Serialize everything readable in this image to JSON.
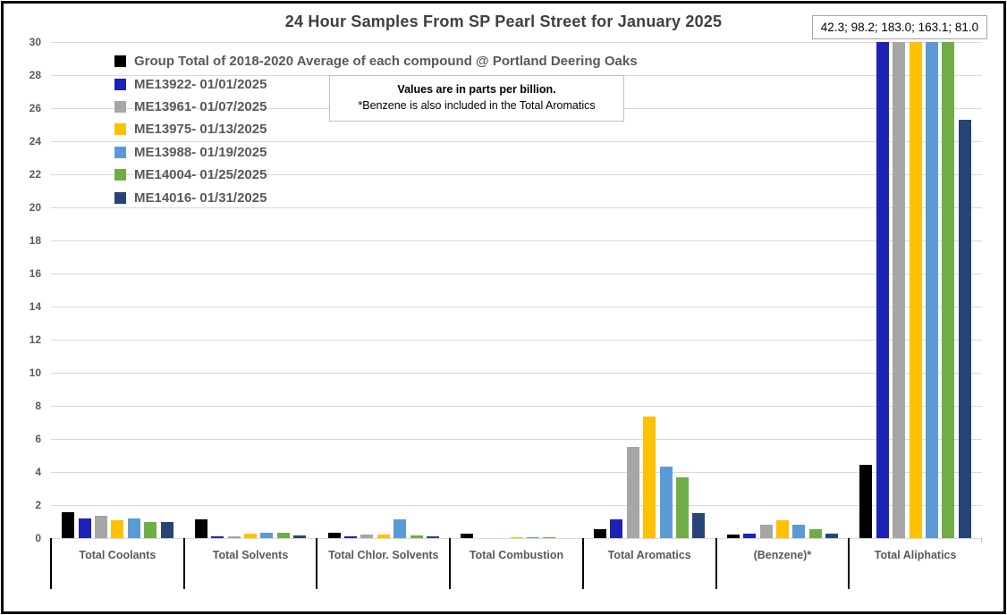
{
  "title": "24 Hour Samples From SP Pearl Street for January 2025",
  "overflow_label": "42.3; 98.2; 183.0; 163.1; 81.0",
  "info_box": {
    "line1": "Values are in parts per billion.",
    "line2": "*Benzene is also included in the Total Aromatics"
  },
  "chart_data": {
    "type": "bar",
    "title": "24 Hour Samples From SP Pearl Street for January 2025",
    "xlabel": "",
    "ylabel": "",
    "ylim": [
      0,
      30
    ],
    "ytick_step": 2,
    "grid": true,
    "legend_position": "top-left",
    "units_note": "parts per billion",
    "categories": [
      "Total Coolants",
      "Total Solvents",
      "Total Chlor. Solvents",
      "Total Combustion",
      "Total Aromatics",
      "(Benzene)*",
      "Total Aliphatics"
    ],
    "series": [
      {
        "name": "Group Total of 2018-2020 Average of each compound @ Portland Deering Oaks",
        "color": "#000000",
        "values": [
          1.55,
          1.15,
          0.35,
          0.25,
          0.55,
          0.2,
          4.45
        ]
      },
      {
        "name": "ME13922- 01/01/2025",
        "color": "#1c22b5",
        "values": [
          1.2,
          0.1,
          0.1,
          0,
          1.15,
          0.25,
          42.3
        ]
      },
      {
        "name": "ME13961- 01/07/2025",
        "color": "#a6a6a6",
        "values": [
          1.35,
          0.1,
          0.2,
          0,
          5.5,
          0.8,
          98.2
        ]
      },
      {
        "name": "ME13975- 01/13/2025",
        "color": "#ffc000",
        "values": [
          1.1,
          0.25,
          0.2,
          0.05,
          7.35,
          1.1,
          183.0
        ]
      },
      {
        "name": "ME13988- 01/19/2025",
        "color": "#5b9bd5",
        "values": [
          1.2,
          0.3,
          1.15,
          0.05,
          4.3,
          0.8,
          163.1
        ]
      },
      {
        "name": "ME14004- 01/25/2025",
        "color": "#70ad47",
        "values": [
          0.95,
          0.35,
          0.15,
          0.05,
          3.65,
          0.55,
          81.0
        ]
      },
      {
        "name": "ME14016- 01/31/2025",
        "color": "#264478",
        "values": [
          0.95,
          0.15,
          0.1,
          0,
          1.5,
          0.25,
          25.3
        ]
      }
    ],
    "clipped_bar_category": "Total Aliphatics",
    "clipped_bar_values": [
      42.3,
      98.2,
      183.0,
      163.1,
      81.0
    ]
  }
}
